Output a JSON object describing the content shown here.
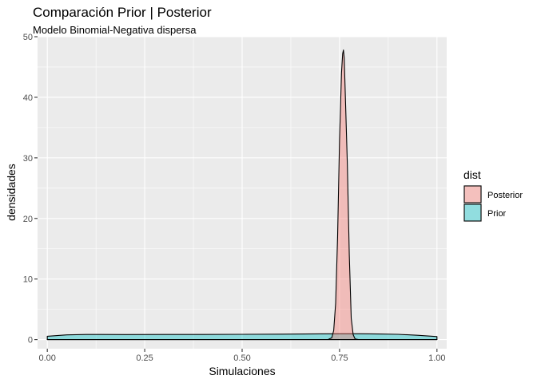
{
  "chart_data": {
    "type": "area",
    "title": "Comparación Prior | Posterior",
    "subtitle": "Modelo Binomial-Negativa dispersa",
    "xlabel": "Simulaciones",
    "ylabel": "densidades",
    "xlim": [
      -0.025,
      1.025
    ],
    "ylim": [
      -1.5,
      50
    ],
    "x_ticks": [
      0,
      0.25,
      0.5,
      0.75,
      1
    ],
    "x_tick_labels": [
      "0.00",
      "0.25",
      "0.50",
      "0.75",
      "1.00"
    ],
    "y_ticks": [
      0,
      10,
      20,
      30,
      40,
      50
    ],
    "y_tick_labels": [
      "0",
      "10",
      "20",
      "30",
      "40",
      "50"
    ],
    "grid": true,
    "legend": {
      "title": "dist",
      "position": "right",
      "entries": [
        "Posterior",
        "Prior"
      ]
    },
    "series": [
      {
        "name": "Prior",
        "color": "#00BFC4",
        "x": [
          0.0,
          0.05,
          0.1,
          0.2,
          0.3,
          0.4,
          0.5,
          0.6,
          0.7,
          0.75,
          0.8,
          0.85,
          0.9,
          0.95,
          1.0
        ],
        "y": [
          0.55,
          0.78,
          0.85,
          0.83,
          0.84,
          0.85,
          0.87,
          0.9,
          0.94,
          0.96,
          0.96,
          0.93,
          0.87,
          0.72,
          0.5
        ]
      },
      {
        "name": "Posterior",
        "color": "#F8766D",
        "x": [
          0.0,
          0.5,
          0.72,
          0.73,
          0.735,
          0.74,
          0.745,
          0.75,
          0.755,
          0.758,
          0.76,
          0.762,
          0.765,
          0.77,
          0.775,
          0.78,
          0.785,
          0.79,
          0.8,
          1.0
        ],
        "y": [
          0,
          0,
          0,
          0.3,
          1.5,
          6,
          17,
          33,
          44,
          47.2,
          47.8,
          46.5,
          40,
          29,
          14,
          3.5,
          0.8,
          0.1,
          0,
          0
        ]
      }
    ]
  }
}
